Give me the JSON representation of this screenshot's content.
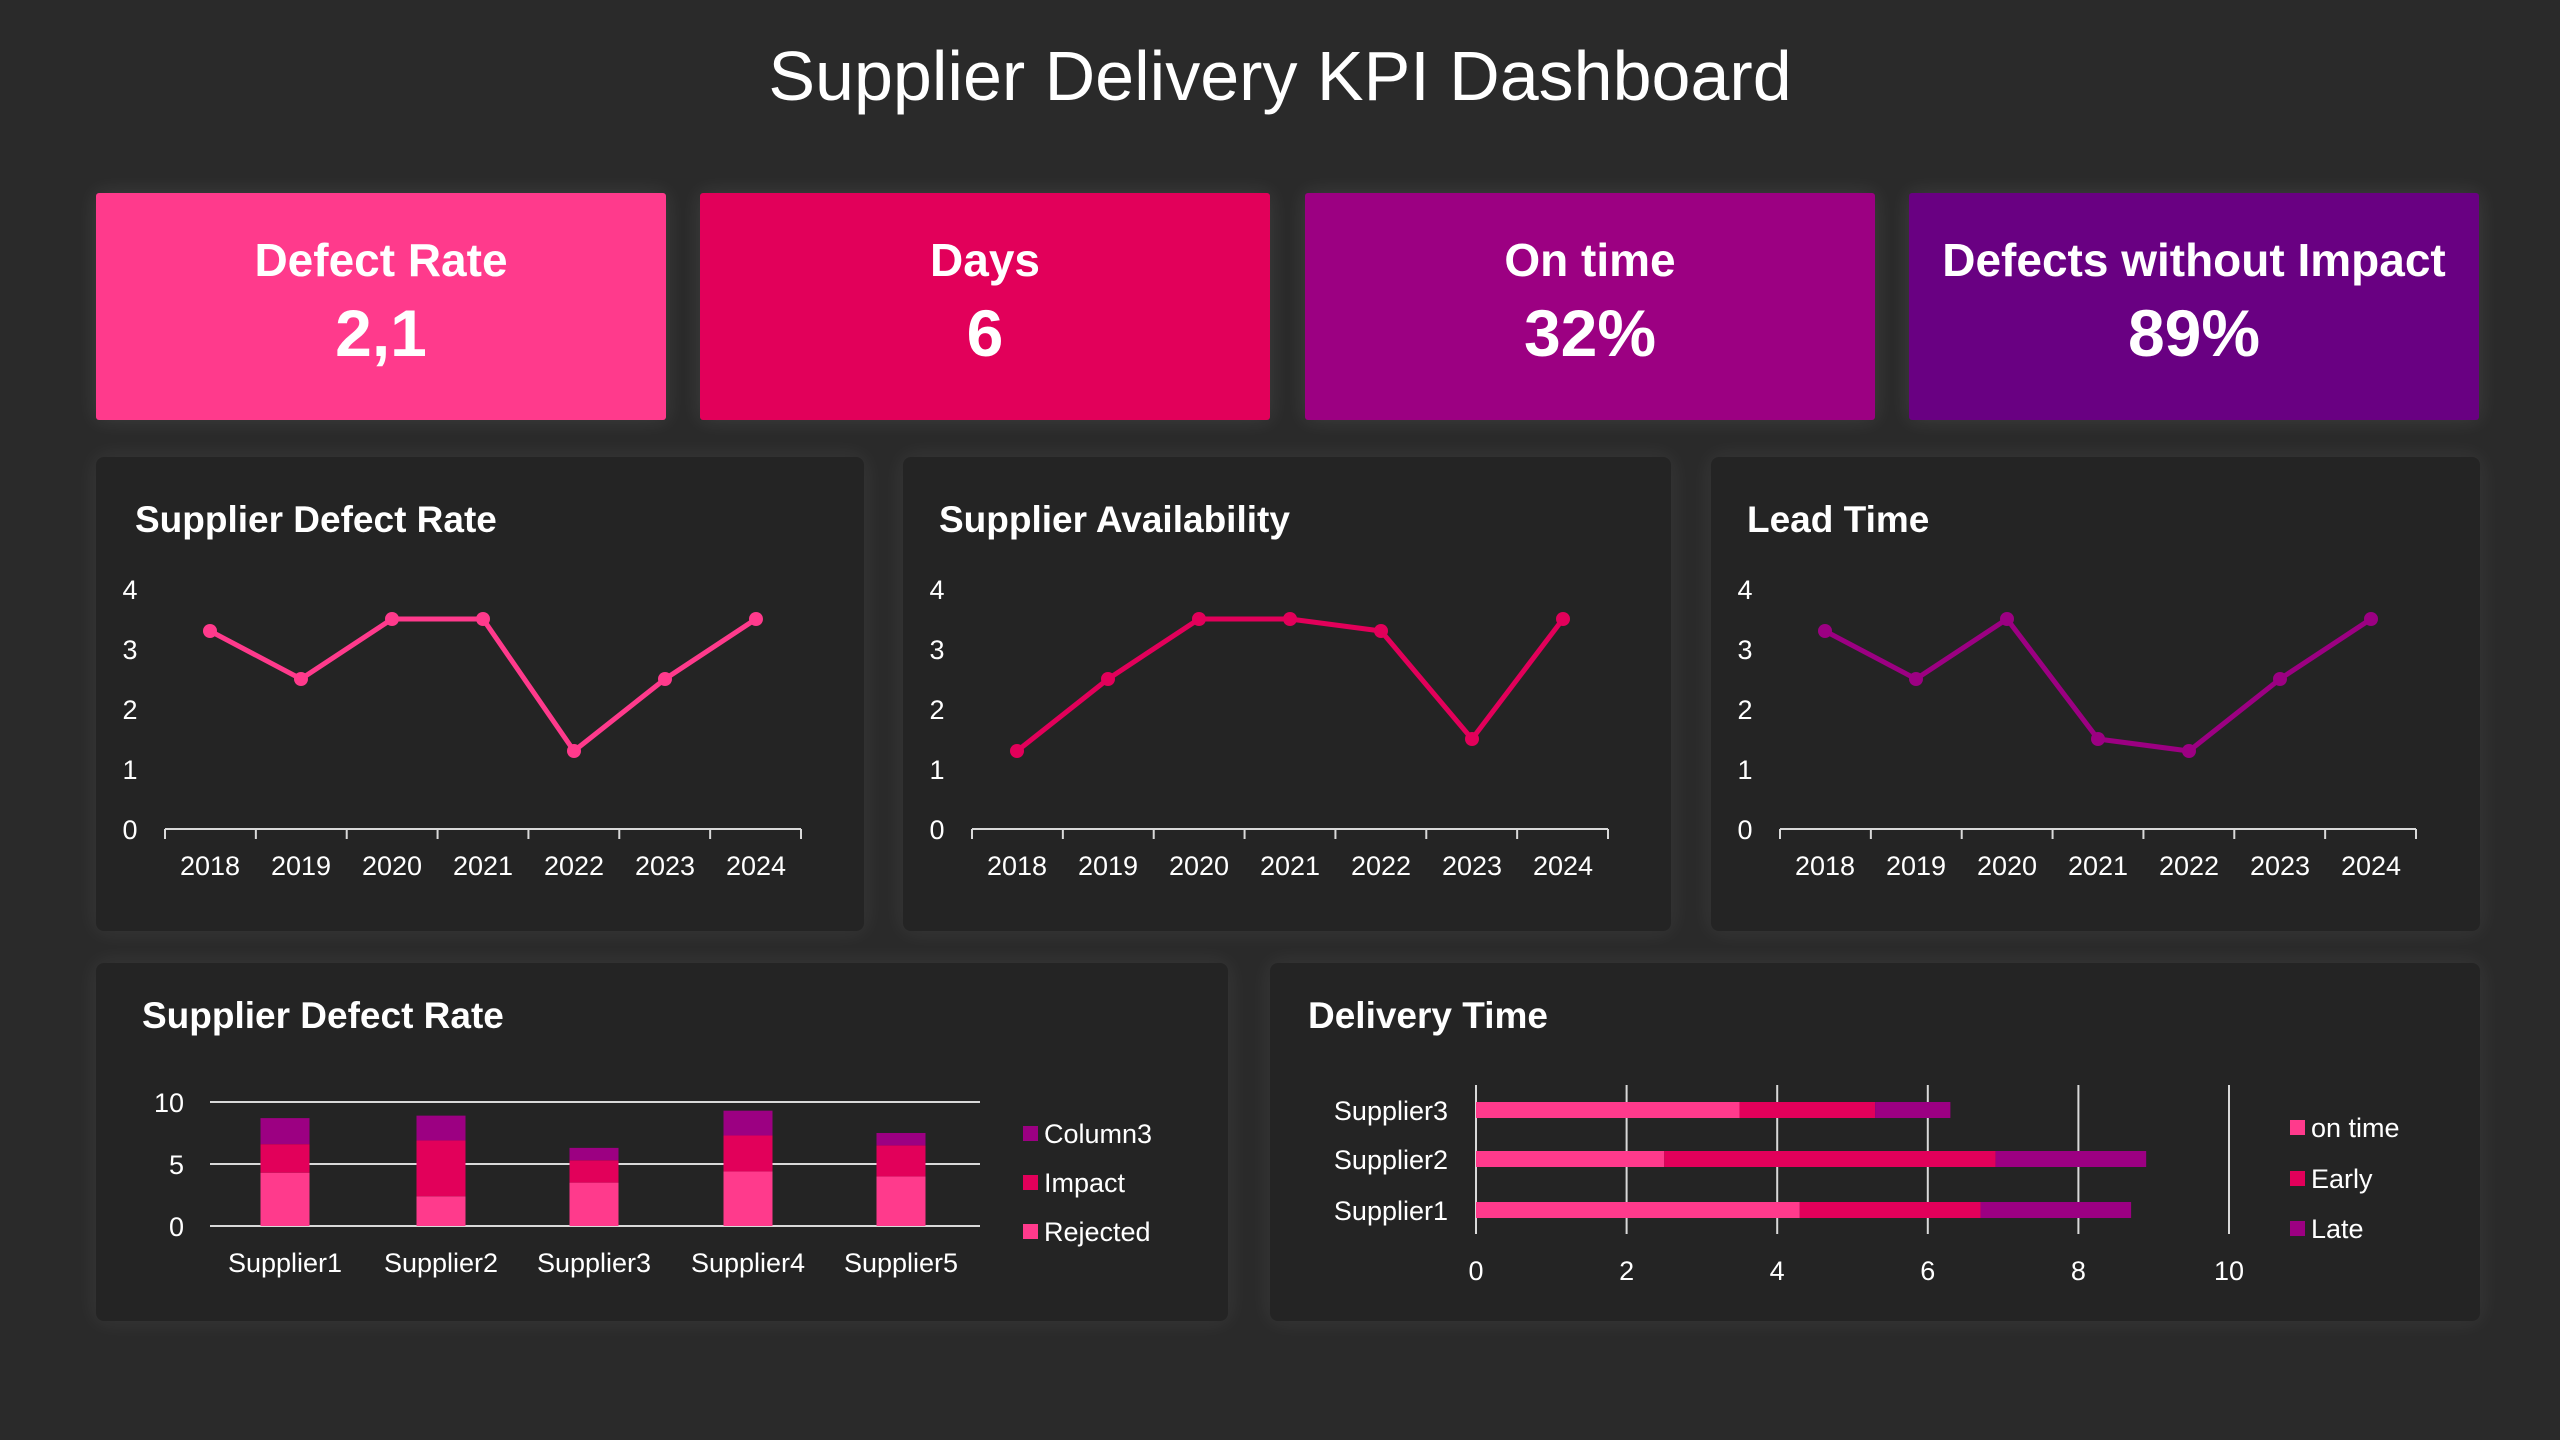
{
  "title": "Supplier Delivery KPI Dashboard",
  "kpis": [
    {
      "label": "Defect Rate",
      "value": "2,1",
      "color": "#ff3a8c"
    },
    {
      "label": "Days",
      "value": "6",
      "color": "#e2005a"
    },
    {
      "label": "On time",
      "value": "32%",
      "color": "#9c0082"
    },
    {
      "label": "Defects without Impact",
      "value": "89%",
      "color": "#690082"
    }
  ],
  "chart_data": [
    {
      "type": "line",
      "title": "Supplier Defect Rate",
      "categories": [
        "2018",
        "2019",
        "2020",
        "2021",
        "2022",
        "2023",
        "2024"
      ],
      "values": [
        3.3,
        2.5,
        3.5,
        3.5,
        1.3,
        2.5,
        3.5
      ],
      "ylim": [
        0,
        4
      ],
      "yticks": [
        "0",
        "1",
        "2",
        "3",
        "4"
      ],
      "color": "#ff3a8c",
      "grid": false
    },
    {
      "type": "line",
      "title": "Supplier Availability",
      "categories": [
        "2018",
        "2019",
        "2020",
        "2021",
        "2022",
        "2023",
        "2024"
      ],
      "values": [
        1.3,
        2.5,
        3.5,
        3.5,
        3.3,
        1.5,
        3.5
      ],
      "ylim": [
        0,
        4
      ],
      "yticks": [
        "0",
        "1",
        "2",
        "3",
        "4"
      ],
      "color": "#e2005a",
      "grid": false
    },
    {
      "type": "line",
      "title": "Lead Time",
      "categories": [
        "2018",
        "2019",
        "2020",
        "2021",
        "2022",
        "2023",
        "2024"
      ],
      "values": [
        3.3,
        2.5,
        3.5,
        1.5,
        1.3,
        2.5,
        3.5
      ],
      "ylim": [
        0,
        4
      ],
      "yticks": [
        "0",
        "1",
        "2",
        "3",
        "4"
      ],
      "color": "#9c0082",
      "grid": false
    },
    {
      "type": "bar",
      "stacked": true,
      "title": "Supplier Defect Rate",
      "categories": [
        "Supplier1",
        "Supplier2",
        "Supplier3",
        "Supplier4",
        "Supplier5"
      ],
      "ylim": [
        0,
        10
      ],
      "yticks": [
        "0",
        "5",
        "10"
      ],
      "grid": true,
      "legend": "right",
      "series": [
        {
          "name": "Rejected",
          "values": [
            4.3,
            2.4,
            3.5,
            4.4,
            4.0
          ],
          "color": "#ff3a8c"
        },
        {
          "name": "Impact",
          "values": [
            2.3,
            4.5,
            1.8,
            2.9,
            2.5
          ],
          "color": "#e2005a"
        },
        {
          "name": "Column3",
          "values": [
            2.1,
            2.0,
            1.0,
            2.0,
            1.0
          ],
          "color": "#9c0082"
        }
      ]
    },
    {
      "type": "bar",
      "orientation": "horizontal",
      "stacked": true,
      "title": "Delivery Time",
      "categories": [
        "Supplier1",
        "Supplier2",
        "Supplier3"
      ],
      "xlim": [
        0,
        10
      ],
      "xticks": [
        "0",
        "2",
        "4",
        "6",
        "8",
        "10"
      ],
      "grid": true,
      "legend": "right",
      "series": [
        {
          "name": "on time",
          "values": [
            4.3,
            2.5,
            3.5
          ],
          "color": "#ff3a8c"
        },
        {
          "name": "Early",
          "values": [
            2.4,
            4.4,
            1.8
          ],
          "color": "#e2005a"
        },
        {
          "name": "Late",
          "values": [
            2.0,
            2.0,
            1.0
          ],
          "color": "#9c0082"
        }
      ]
    }
  ]
}
